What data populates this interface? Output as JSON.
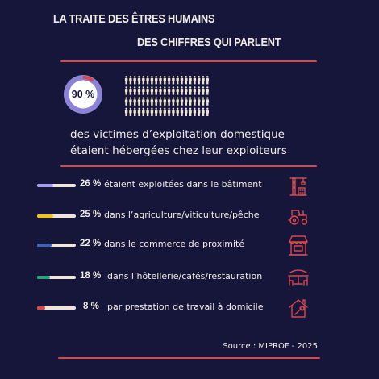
{
  "title": {
    "line1": "LA TRAITE DES ÊTRES HUMAINS",
    "line2": "DES CHIFFRES QUI PARLENT"
  },
  "headline": {
    "percent_label": "90 %",
    "percent": 90,
    "line1": "des victimes d’exploitation domestique",
    "line2": "étaient hébergées chez leur exploiteurs"
  },
  "people_grid": {
    "total": 100,
    "highlighted": 10,
    "color_default": "#eee4d8",
    "color_highlight": "#d8474b"
  },
  "stats": [
    {
      "value": "26 %",
      "percent": 26,
      "label": "étaient exploitées dans le bâtiment",
      "color": "#a89af0",
      "icon": "construction-crane-icon"
    },
    {
      "value": "25 %",
      "percent": 25,
      "label": "dans l’agriculture/viticulture/pêche",
      "color": "#f2c21b",
      "icon": "tractor-icon"
    },
    {
      "value": "22 %",
      "percent": 22,
      "label": "dans le commerce de proximité",
      "color": "#3d63b8",
      "icon": "market-stall-icon"
    },
    {
      "value": "18 %",
      "percent": 18,
      "label": "dans l’hôtellerie/cafés/restauration",
      "color": "#2aa57a",
      "icon": "restaurant-icon"
    },
    {
      "value": "8 %",
      "percent": 8,
      "label": "par prestation de travail à domicile",
      "color": "#d8474b",
      "icon": "house-repair-icon"
    }
  ],
  "source": "Source : MIPROF -  2025",
  "colors": {
    "background": "#16163a",
    "accent": "#d8474b",
    "text": "#f2ece6",
    "badge": "#a89af0"
  }
}
